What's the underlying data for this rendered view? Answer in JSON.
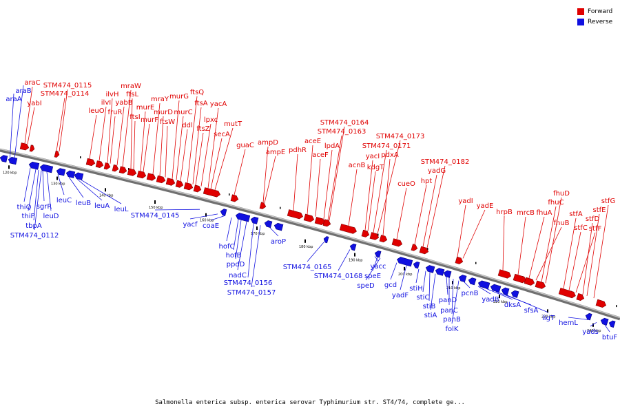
{
  "caption": "Salmonella enterica subsp. enterica serovar Typhimurium str. ST4/74, complete ge...",
  "colors": {
    "forward": "#e00000",
    "reverse": "#1010e0",
    "backbone": "#808080"
  },
  "legend": [
    {
      "label": "Forward",
      "color": "#e00000"
    },
    {
      "label": "Reverse",
      "color": "#1010e0"
    }
  ],
  "ticks": [
    "120 kbp",
    "130 kbp",
    "140 kbp",
    "150 kbp",
    "160 kbp",
    "170 kbp",
    "180 kbp",
    "190 kbp",
    "200 kbp",
    "210 kbp",
    "220 kbp",
    "230 kbp",
    "240 kbp"
  ],
  "forward_genes": [
    "araC",
    "yabI",
    "STM474_0115",
    "STM474_0114",
    "leuO",
    "ilvI",
    "ilvH",
    "fruR",
    "yabB",
    "mraW",
    "ftsL",
    "ftsI",
    "murF",
    "murE",
    "mraY",
    "murD",
    "ftsW",
    "murG",
    "murC",
    "ddl",
    "ftsQ",
    "ftsA",
    "ftsZ",
    "lpxc",
    "yacA",
    "secA",
    "mutT",
    "guaC",
    "ampD",
    "ampE",
    "pdhR",
    "aceE",
    "aceF",
    "lpdA",
    "STM474_0164",
    "STM474_0163",
    "acnB",
    "yacI",
    "kdgT",
    "STM474_0173",
    "STM474_0171",
    "pdxA",
    "cueO",
    "hpt",
    "yadG",
    "STM474_0182",
    "yadI",
    "yadE",
    "hrpB",
    "mrcB",
    "fhuA",
    "fhuB",
    "fhuC",
    "fhuD",
    "stfA",
    "stfC",
    "stfD",
    "stfE",
    "stfF",
    "stfG"
  ],
  "reverse_genes": [
    "araA",
    "araB",
    "thiQ",
    "thiP",
    "tbpA",
    "sgrR",
    "STM474_0112",
    "leuD",
    "leuC",
    "leuB",
    "leuA",
    "leuL",
    "STM474_0145",
    "yacf",
    "coaE",
    "hofC",
    "hofB",
    "ppdD",
    "nadC",
    "STM474_0156",
    "STM474_0157",
    "aroP",
    "STM474_0165",
    "STM474_0168",
    "yacc",
    "speE",
    "speD",
    "gcd",
    "yadF",
    "stiH",
    "stiC",
    "stiB",
    "stiA",
    "panD",
    "panC",
    "panB",
    "folK",
    "pcnB",
    "yadB",
    "dksA",
    "sfsA",
    "ligT",
    "hemL",
    "yads",
    "btuF"
  ]
}
